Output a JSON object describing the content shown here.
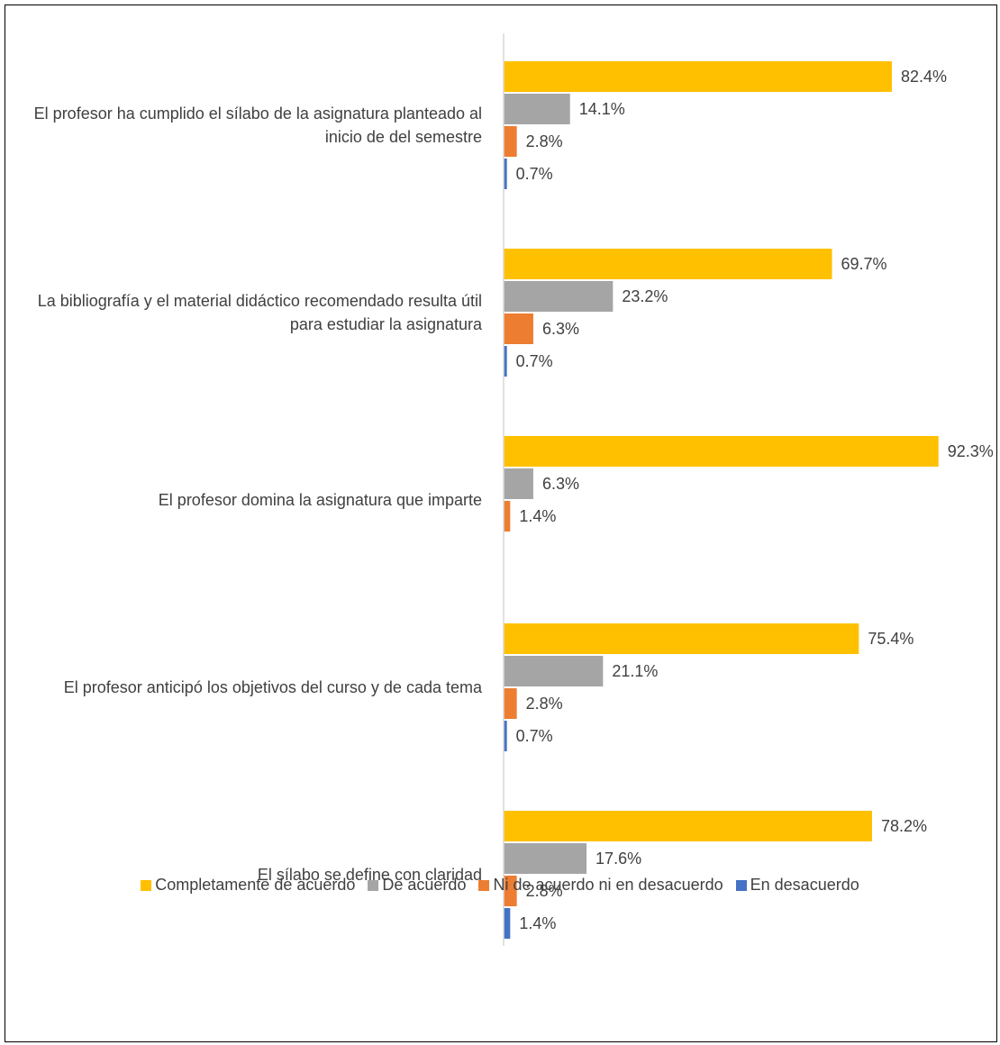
{
  "chart_data": {
    "type": "bar",
    "orientation": "horizontal",
    "categories": [
      "El profesor ha cumplido el sílabo de la asignatura planteado al inicio de del semestre",
      "La bibliografía y el material didáctico recomendado resulta útil para estudiar la asignatura",
      "El profesor domina la asignatura que imparte",
      "El profesor anticipó los objetivos del curso y de cada tema",
      "El sílabo se define con claridad"
    ],
    "series": [
      {
        "name": "Completamente de acuerdo",
        "color": "#ffc000",
        "values": [
          82.4,
          69.7,
          92.3,
          75.4,
          78.2
        ],
        "value_labels": [
          "82.4%",
          "69.7%",
          "92.3%",
          "75.4%",
          "78.2%"
        ]
      },
      {
        "name": "De acuerdo",
        "color": "#a5a5a5",
        "values": [
          14.1,
          23.2,
          6.3,
          21.1,
          17.6
        ],
        "value_labels": [
          "14.1%",
          "23.2%",
          "6.3%",
          "21.1%",
          "17.6%"
        ]
      },
      {
        "name": "Ni de acuerdo ni en desacuerdo",
        "color": "#ed7d31",
        "values": [
          2.8,
          6.3,
          1.4,
          2.8,
          2.8
        ],
        "value_labels": [
          "2.8%",
          "6.3%",
          "1.4%",
          "2.8%",
          "2.8%"
        ]
      },
      {
        "name": "En desacuerdo",
        "color": "#4472c4",
        "values": [
          0.7,
          0.7,
          null,
          0.7,
          1.4
        ],
        "value_labels": [
          "0.7%",
          "0.7%",
          null,
          "0.7%",
          "1.4%"
        ]
      }
    ],
    "xlim": [
      0,
      100
    ],
    "legend": "bottom"
  }
}
